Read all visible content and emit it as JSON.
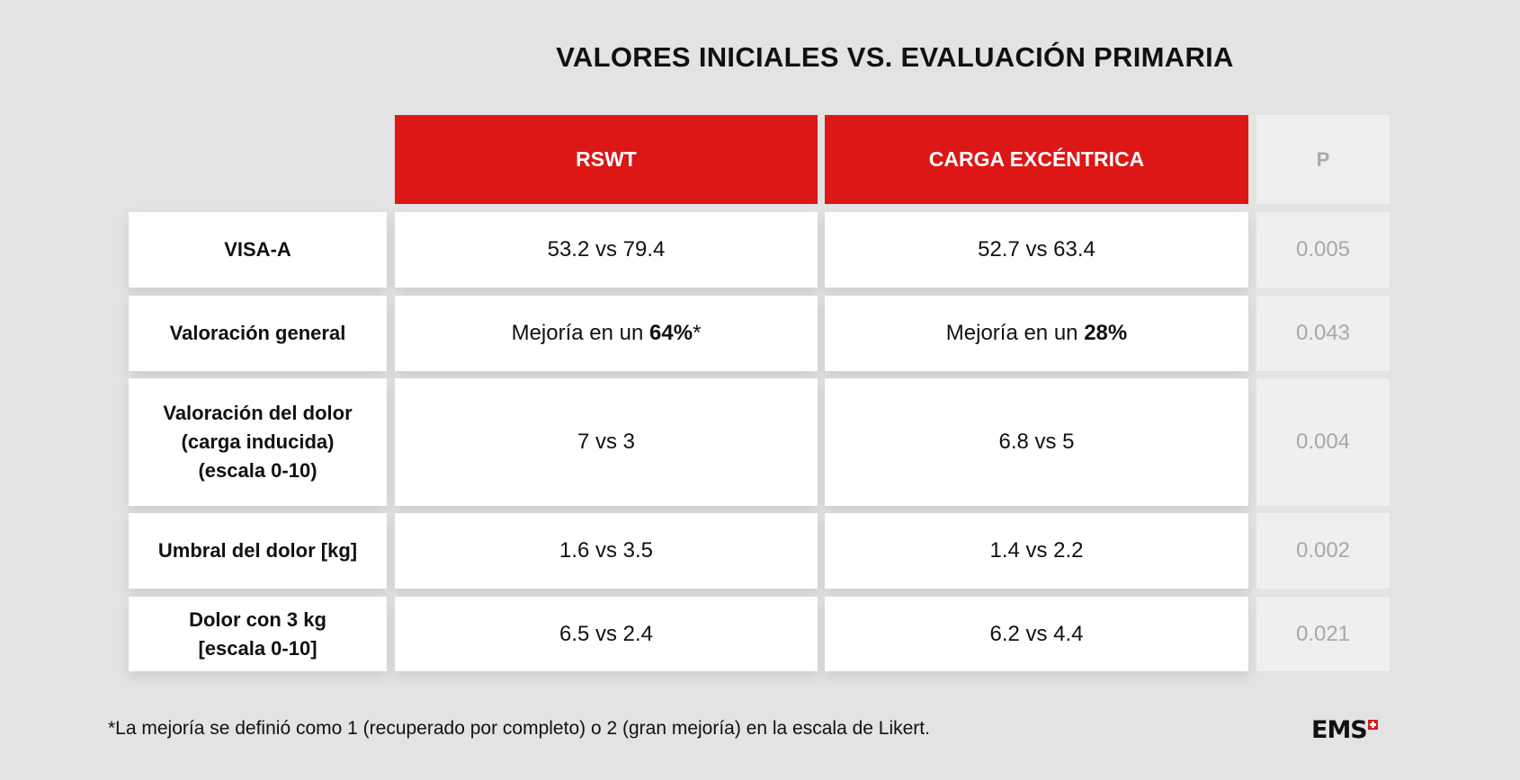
{
  "title": "VALORES INICIALES VS. EVALUACIÓN PRIMARIA",
  "headers": {
    "col1": "RSWT",
    "col2": "CARGA EXCÉNTRICA",
    "p": "P"
  },
  "rows": [
    {
      "label": [
        "VISA-A"
      ],
      "rswt": "53.2 vs 79.4",
      "carga": "52.7 vs 63.4",
      "p": "0.005"
    },
    {
      "label": [
        "Valoración general"
      ],
      "rswt_prefix": "Mejoría en un ",
      "rswt_bold": "64%",
      "rswt_suffix": "*",
      "carga_prefix": "Mejoría en un ",
      "carga_bold": "28%",
      "p": "0.043"
    },
    {
      "label": [
        "Valoración del dolor",
        "(carga inducida)",
        "(escala 0-10)"
      ],
      "rswt": "7 vs 3",
      "carga": "6.8 vs 5",
      "p": "0.004"
    },
    {
      "label": [
        "Umbral del dolor [kg]"
      ],
      "rswt": "1.6 vs 3.5",
      "carga": "1.4 vs 2.2",
      "p": "0.002"
    },
    {
      "label": [
        "Dolor con 3 kg",
        "[escala 0-10]"
      ],
      "rswt": "6.5 vs 2.4",
      "carga": "6.2 vs 4.4",
      "p": "0.021"
    }
  ],
  "footnote": "*La mejoría se definió como 1 (recuperado por completo) o 2 (gran mejoría) en la escala de Likert.",
  "logo": {
    "text": "EMS"
  },
  "colors": {
    "header_red": "#dd1616",
    "background": "#e3e3e3",
    "p_column": "#efefef"
  }
}
